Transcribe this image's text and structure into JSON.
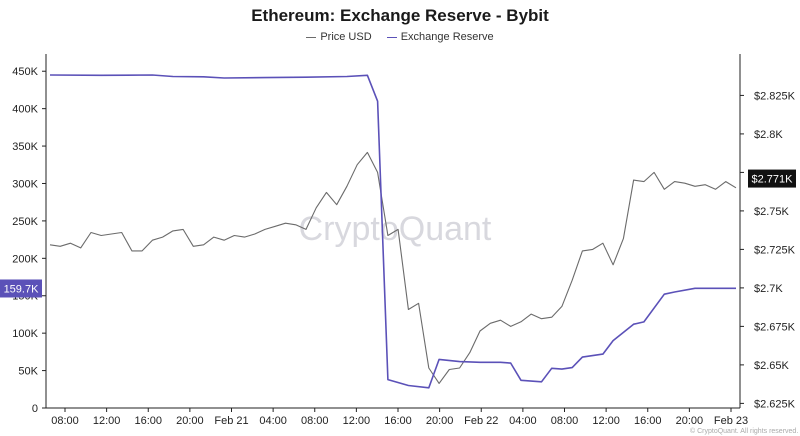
{
  "chart_data": {
    "type": "line",
    "title": "Ethereum: Exchange Reserve - Bybit",
    "x_ticks": [
      "08:00",
      "12:00",
      "16:00",
      "20:00",
      "Feb 21",
      "04:00",
      "08:00",
      "12:00",
      "16:00",
      "20:00",
      "Feb 22",
      "04:00",
      "08:00",
      "12:00",
      "16:00",
      "20:00",
      "Feb 23"
    ],
    "y_left": {
      "ylim": [
        0,
        465000
      ],
      "ticks": [
        0,
        50000,
        100000,
        150000,
        200000,
        250000,
        300000,
        350000,
        400000,
        450000
      ],
      "tick_labels": [
        "0",
        "50K",
        "100K",
        "150K",
        "200K",
        "250K",
        "300K",
        "350K",
        "400K",
        "450K"
      ]
    },
    "y_right": {
      "ylim": [
        2622,
        2848
      ],
      "ticks": [
        2625,
        2650,
        2675,
        2700,
        2725,
        2750,
        2775,
        2800,
        2825
      ],
      "tick_labels": [
        "$2.625K",
        "$2.65K",
        "$2.675K",
        "$2.7K",
        "$2.725K",
        "$2.75K",
        "",
        "$2.8K",
        "$2.825K"
      ]
    },
    "current_values": {
      "reserve_label": "159.7K",
      "price_label": "$2.771K",
      "reserve": 159700,
      "price": 2771
    },
    "series": [
      {
        "name": "Price USD",
        "axis": "right",
        "color": "#6b6b6b",
        "values": [
          [
            0,
            2728
          ],
          [
            1,
            2727
          ],
          [
            2,
            2729
          ],
          [
            3,
            2726
          ],
          [
            4,
            2736
          ],
          [
            5,
            2734
          ],
          [
            6,
            2735
          ],
          [
            7,
            2736
          ],
          [
            8,
            2724
          ],
          [
            9,
            2724
          ],
          [
            10,
            2731
          ],
          [
            11,
            2733
          ],
          [
            12,
            2737
          ],
          [
            13,
            2738
          ],
          [
            14,
            2727
          ],
          [
            15,
            2728
          ],
          [
            16,
            2733
          ],
          [
            17,
            2731
          ],
          [
            18,
            2734
          ],
          [
            19,
            2733
          ],
          [
            20,
            2735
          ],
          [
            21,
            2738
          ],
          [
            22,
            2740
          ],
          [
            23,
            2742
          ],
          [
            24,
            2741
          ],
          [
            25,
            2738
          ],
          [
            26,
            2752
          ],
          [
            27,
            2762
          ],
          [
            28,
            2754
          ],
          [
            29,
            2766
          ],
          [
            30,
            2780
          ],
          [
            31,
            2788
          ],
          [
            32,
            2775
          ],
          [
            33,
            2734
          ],
          [
            34,
            2738
          ],
          [
            35,
            2686
          ],
          [
            36,
            2690
          ],
          [
            37,
            2648
          ],
          [
            38,
            2638
          ],
          [
            39,
            2647
          ],
          [
            40,
            2648
          ],
          [
            41,
            2658
          ],
          [
            42,
            2672
          ],
          [
            43,
            2677
          ],
          [
            44,
            2679
          ],
          [
            45,
            2675
          ],
          [
            46,
            2678
          ],
          [
            47,
            2683
          ],
          [
            48,
            2680
          ],
          [
            49,
            2681
          ],
          [
            50,
            2688
          ],
          [
            51,
            2705
          ],
          [
            52,
            2724
          ],
          [
            53,
            2725
          ],
          [
            54,
            2729
          ],
          [
            55,
            2715
          ],
          [
            56,
            2732
          ],
          [
            57,
            2770
          ],
          [
            58,
            2769
          ],
          [
            59,
            2775
          ],
          [
            60,
            2764
          ],
          [
            61,
            2769
          ],
          [
            62,
            2768
          ],
          [
            63,
            2766
          ],
          [
            64,
            2767
          ],
          [
            65,
            2764
          ],
          [
            66,
            2769
          ],
          [
            67,
            2765
          ]
        ]
      },
      {
        "name": "Exchange Reserve",
        "axis": "left",
        "color": "#5b51b8",
        "values": [
          [
            0,
            445000
          ],
          [
            5,
            444500
          ],
          [
            10,
            445000
          ],
          [
            12,
            443000
          ],
          [
            15,
            442500
          ],
          [
            17,
            441000
          ],
          [
            21,
            441500
          ],
          [
            25,
            442000
          ],
          [
            29,
            443000
          ],
          [
            31,
            444500
          ],
          [
            32,
            410000
          ],
          [
            33,
            38000
          ],
          [
            35,
            30000
          ],
          [
            37,
            27000
          ],
          [
            38,
            65000
          ],
          [
            40,
            62000
          ],
          [
            42,
            61000
          ],
          [
            44,
            61000
          ],
          [
            45,
            60000
          ],
          [
            46,
            37000
          ],
          [
            48,
            35000
          ],
          [
            49,
            53000
          ],
          [
            50,
            52000
          ],
          [
            51,
            54000
          ],
          [
            52,
            68000
          ],
          [
            54,
            72000
          ],
          [
            55,
            90000
          ],
          [
            57,
            112000
          ],
          [
            58,
            115000
          ],
          [
            60,
            152000
          ],
          [
            61,
            155000
          ],
          [
            63,
            160000
          ],
          [
            67,
            160000
          ]
        ]
      }
    ],
    "watermark": "CryptoQuant",
    "footer": "© CryptoQuant. All rights reserved.",
    "grid": false,
    "legend_placement": "top-center"
  }
}
